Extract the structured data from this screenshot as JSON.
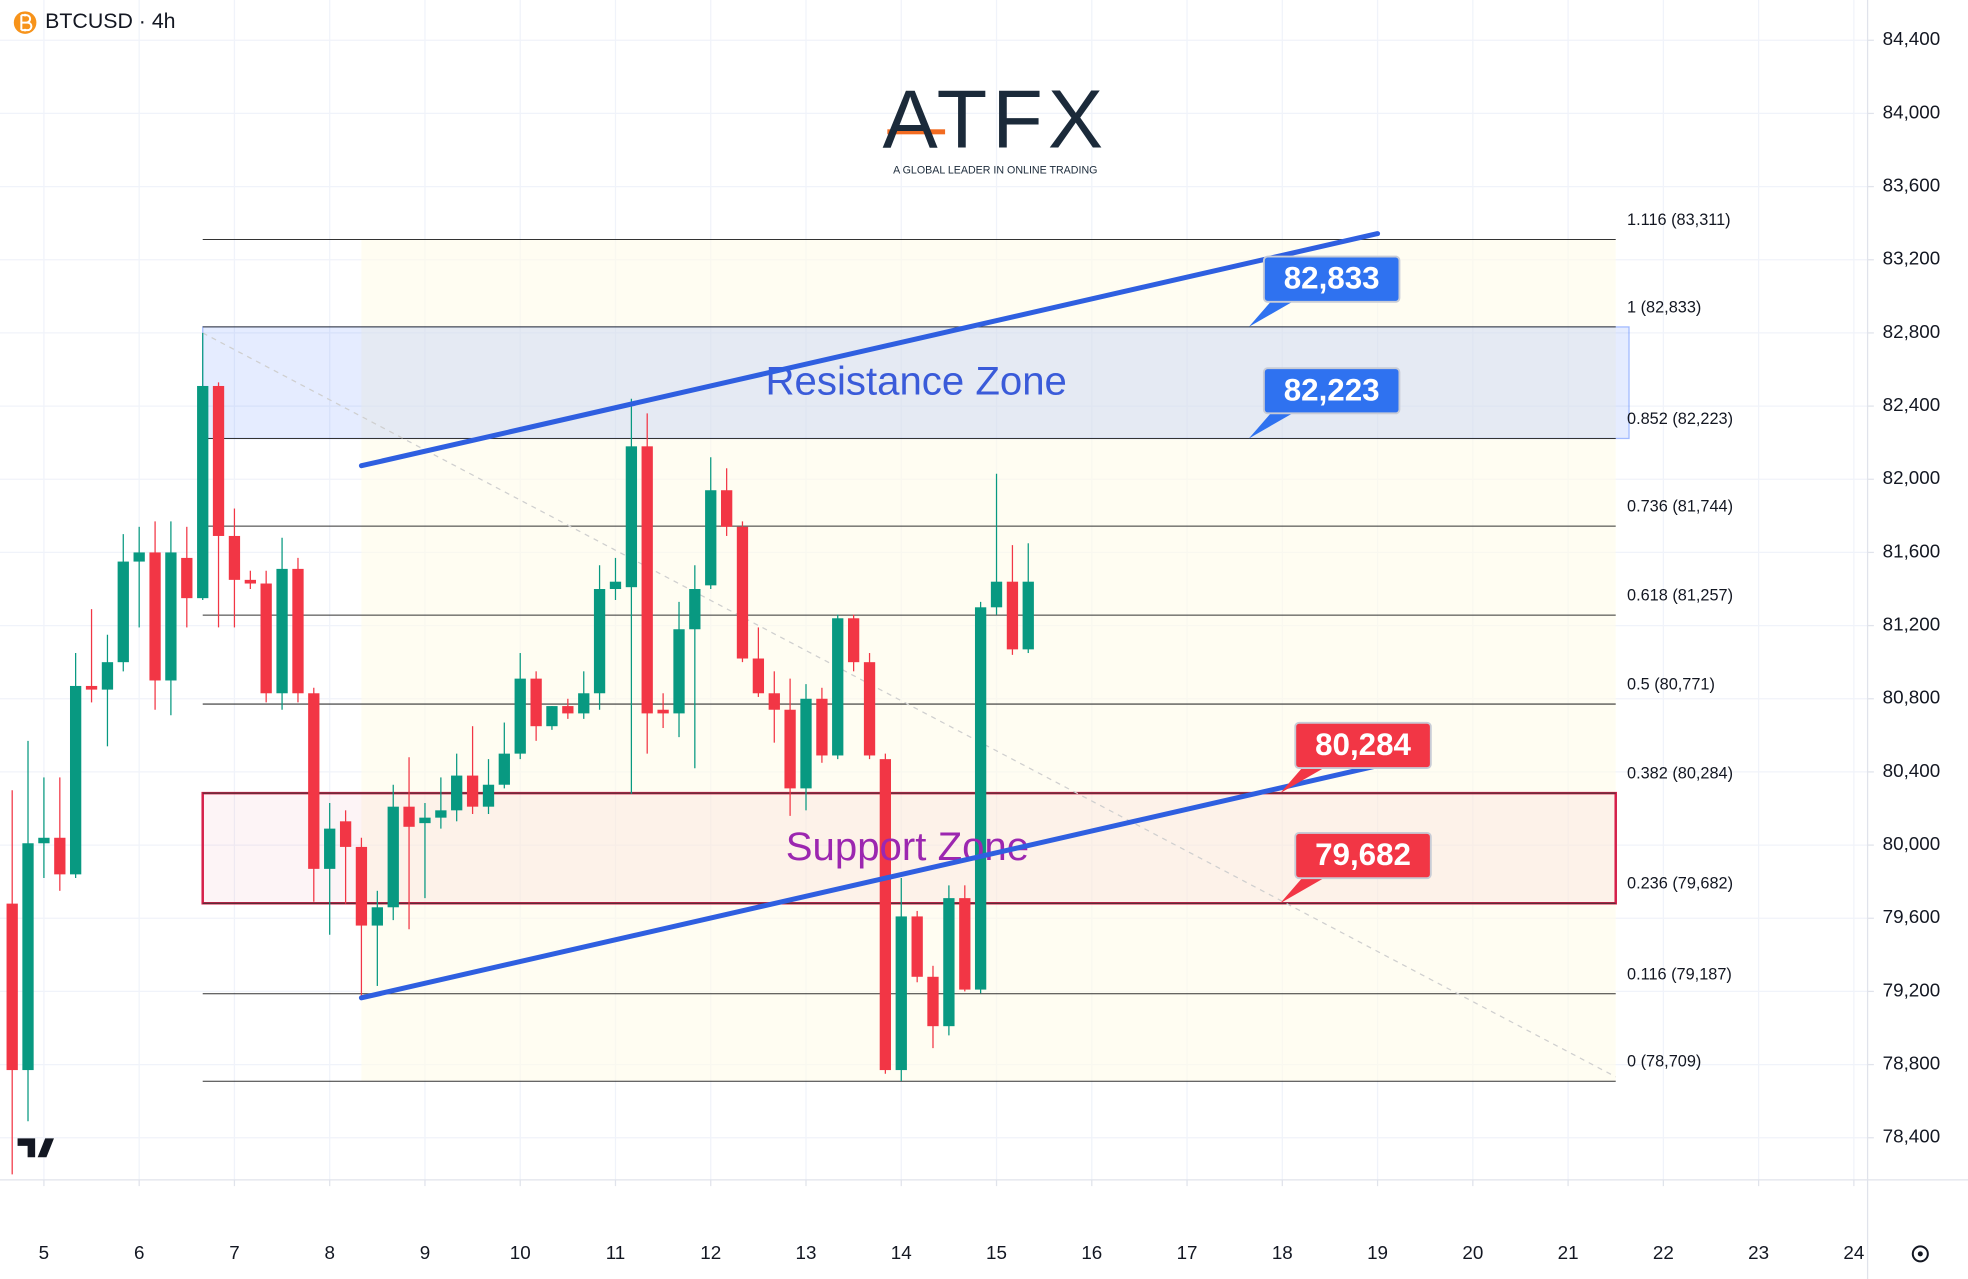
{
  "header": {
    "symbol": "BTCUSD · 4h"
  },
  "logo": {
    "name": "ATFX",
    "tagline": "A GLOBAL LEADER IN ONLINE TRADING"
  },
  "chart_data": {
    "type": "candlestick",
    "up_color": "#089981",
    "down_color": "#f23645",
    "x": [
      4.667,
      4.833,
      5,
      5.167,
      5.333,
      5.5,
      5.667,
      5.833,
      6,
      6.167,
      6.333,
      6.5,
      6.667,
      6.833,
      7,
      7.167,
      7.333,
      7.5,
      7.667,
      7.833,
      8,
      8.167,
      8.333,
      8.5,
      8.667,
      8.833,
      9,
      9.167,
      9.333,
      9.5,
      9.667,
      9.833,
      10,
      10.167,
      10.333,
      10.5,
      10.667,
      10.833,
      11,
      11.167,
      11.333,
      11.5,
      11.667,
      11.833,
      12,
      12.167,
      12.333,
      12.5,
      12.667,
      12.833,
      13,
      13.167,
      13.333,
      13.5,
      13.667,
      13.833,
      14,
      14.167,
      14.333,
      14.5,
      14.667,
      14.833,
      15,
      15.167,
      15.333
    ],
    "open": [
      79680,
      78770,
      80010,
      80040,
      79840,
      80870,
      80850,
      81000,
      81550,
      81600,
      80900,
      81570,
      81350,
      82510,
      81690,
      81450,
      81430,
      80830,
      81510,
      80830,
      79870,
      80130,
      79990,
      79560,
      79660,
      80210,
      80120,
      80150,
      80190,
      80380,
      80210,
      80330,
      80500,
      80910,
      80650,
      80760,
      80720,
      80830,
      81400,
      81410,
      82180,
      80740,
      80720,
      81180,
      81420,
      81940,
      81740,
      81020,
      80830,
      80740,
      80310,
      80800,
      80490,
      81240,
      81000,
      80470,
      78770,
      79610,
      79280,
      79010,
      79710,
      79210,
      81300,
      81440,
      81070
    ],
    "high": [
      80300,
      80570,
      80370,
      80370,
      81050,
      81290,
      81150,
      81700,
      81740,
      81770,
      81770,
      81740,
      82800,
      82530,
      81840,
      81500,
      81500,
      81680,
      81570,
      80860,
      80230,
      80190,
      80040,
      79750,
      80330,
      80480,
      80230,
      80370,
      80500,
      80650,
      80470,
      80670,
      81050,
      80950,
      80760,
      80800,
      80950,
      81530,
      81570,
      82440,
      82360,
      80830,
      81330,
      81530,
      82120,
      82060,
      81770,
      81190,
      80950,
      80910,
      80880,
      80860,
      81260,
      81260,
      81050,
      80500,
      79820,
      79640,
      79340,
      79780,
      79780,
      81330,
      82030,
      81640,
      81650
    ],
    "low": [
      78200,
      78490,
      79820,
      79750,
      79820,
      80780,
      80540,
      80950,
      81190,
      80740,
      80710,
      81190,
      81340,
      81190,
      81190,
      81400,
      80780,
      80740,
      80780,
      79690,
      79510,
      79680,
      79160,
      79230,
      79590,
      79540,
      79710,
      80090,
      80130,
      80170,
      80170,
      80310,
      80470,
      80570,
      80630,
      80690,
      80690,
      80740,
      81340,
      80280,
      80500,
      80640,
      80590,
      80420,
      81400,
      81690,
      81000,
      80810,
      80560,
      80160,
      80190,
      80450,
      80470,
      80950,
      80470,
      78750,
      78710,
      79250,
      78890,
      78960,
      79200,
      79190,
      81260,
      81040,
      81050
    ],
    "close": [
      78770,
      80010,
      80040,
      79840,
      80870,
      80850,
      81000,
      81550,
      81600,
      80900,
      81600,
      81350,
      82510,
      81690,
      81450,
      81430,
      80830,
      81510,
      80830,
      79870,
      80090,
      79990,
      79560,
      79660,
      80210,
      80100,
      80150,
      80190,
      80380,
      80210,
      80330,
      80500,
      80910,
      80650,
      80760,
      80720,
      80830,
      81400,
      81440,
      82180,
      80720,
      80720,
      81180,
      81400,
      81940,
      81740,
      81020,
      80830,
      80740,
      80310,
      80800,
      80490,
      81240,
      81000,
      80490,
      78770,
      79610,
      79280,
      79010,
      79710,
      79210,
      81300,
      81440,
      81070,
      81440
    ],
    "xlim": [
      4.539,
      24.144
    ],
    "xticks": [
      5,
      6,
      7,
      8,
      9,
      10,
      11,
      12,
      13,
      14,
      15,
      16,
      17,
      18,
      19,
      20,
      21,
      22,
      23,
      24
    ],
    "ylim": [
      78170,
      84620
    ],
    "yticks": [
      {
        "value": 78400,
        "label": "78,400"
      },
      {
        "value": 78800,
        "label": "78,800"
      },
      {
        "value": 79200,
        "label": "79,200"
      },
      {
        "value": 79600,
        "label": "79,600"
      },
      {
        "value": 80000,
        "label": "80,000"
      },
      {
        "value": 80400,
        "label": "80,400"
      },
      {
        "value": 80800,
        "label": "80,800"
      },
      {
        "value": 81200,
        "label": "81,200"
      },
      {
        "value": 81600,
        "label": "81,600"
      },
      {
        "value": 82000,
        "label": "82,000"
      },
      {
        "value": 82400,
        "label": "82,400"
      },
      {
        "value": 82800,
        "label": "82,800"
      },
      {
        "value": 83200,
        "label": "83,200"
      },
      {
        "value": 83600,
        "label": "83,600"
      },
      {
        "value": 84000,
        "label": "84,000"
      },
      {
        "value": 84400,
        "label": "84,400"
      }
    ],
    "grid": true,
    "fib_xlim": [
      6.667,
      21.5
    ],
    "fib_levels": [
      {
        "value": 83311,
        "label": "1.116 (83,311)"
      },
      {
        "value": 82833,
        "label": "1 (82,833)"
      },
      {
        "value": 82223,
        "label": "0.852 (82,223)"
      },
      {
        "value": 81744,
        "label": "0.736 (81,744)"
      },
      {
        "value": 81257,
        "label": "0.618 (81,257)"
      },
      {
        "value": 80771,
        "label": "0.5 (80,771)"
      },
      {
        "value": 80284,
        "label": "0.382 (80,284)"
      },
      {
        "value": 79682,
        "label": "0.236 (79,682)"
      },
      {
        "value": 79187,
        "label": "0.116 (79,187)"
      },
      {
        "value": 78709,
        "label": "0 (78,709)"
      }
    ],
    "zones": [
      {
        "name": "Resistance Zone",
        "low": 82223,
        "high": 82833,
        "x": [
          6.667,
          21.64
        ],
        "color": "#2962ff",
        "text_color": "#3a5bd9"
      },
      {
        "name": "Support Zone",
        "low": 79682,
        "high": 80284,
        "x": [
          6.667,
          21.5
        ],
        "color": "#d6204a",
        "text_color": "#9c27b0"
      }
    ],
    "trend_lines": [
      {
        "x": [
          8.333,
          19
        ],
        "y": [
          82074,
          83343
        ],
        "color": "#2f5fe0"
      },
      {
        "x": [
          8.333,
          19
        ],
        "y": [
          79165,
          80434
        ],
        "color": "#2f5fe0"
      },
      {
        "x": [
          6.667,
          21.5
        ],
        "y": [
          82800,
          78733
        ],
        "color": "#cfcfcf",
        "dashed": true
      }
    ],
    "price_labels": {
      "values": [
        82833,
        82223,
        80284,
        79682
      ],
      "value_labels": [
        "82,833",
        "82,223",
        "80,284",
        "79,682"
      ],
      "colors": [
        "#2f72f0",
        "#2f72f0",
        "#f23645",
        "#f23645"
      ]
    }
  }
}
